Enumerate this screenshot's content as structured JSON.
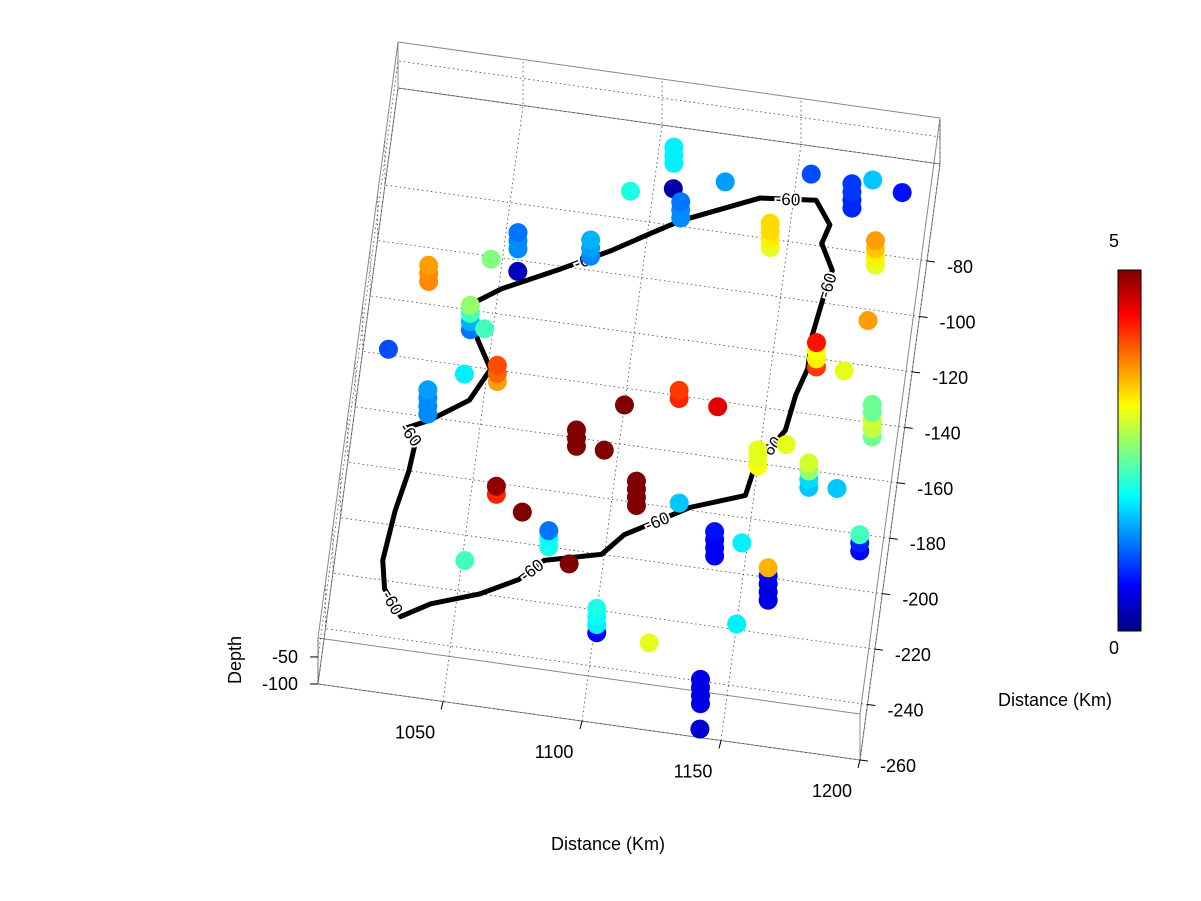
{
  "chart_data": {
    "type": "scatter3",
    "x_label": "Distance (Km)",
    "y_label": "Distance (Km)",
    "z_label": "Depth",
    "xlim": [
      1005,
      1200
    ],
    "xticks": [
      1050,
      1100,
      1150,
      1200
    ],
    "ylim": [
      -260,
      -45
    ],
    "yticks": [
      -260,
      -240,
      -220,
      -200,
      -180,
      -160,
      -140,
      -120,
      -100,
      -80
    ],
    "zlim": [
      -100,
      -15
    ],
    "zticks": [
      -100,
      -50
    ],
    "grid": true,
    "colormap": "jet",
    "clim": [
      0,
      5
    ],
    "cticks": [
      0,
      5
    ],
    "x": [
      1106,
      1106,
      1106,
      1092,
      1107,
      1111,
      1111,
      1111,
      1125,
      1155,
      1171,
      1171,
      1171,
      1171,
      1177,
      1188,
      1055,
      1055,
      1055,
      1056,
      1081,
      1081,
      1081,
      1144,
      1144,
      1144,
      1144,
      1182,
      1182,
      1182,
      1182,
      1025,
      1025,
      1025,
      1046,
      1042,
      1042,
      1042,
      1042,
      1047,
      1014,
      1054,
      1054,
      1054,
      1042,
      1031,
      1031,
      1031,
      1031,
      1166,
      1166,
      1166,
      1166,
      1182,
      1176,
      1189,
      1189,
      1189,
      1189,
      1189,
      1119,
      1119,
      1100,
      1133,
      1085,
      1085,
      1085,
      1095,
      1150,
      1150,
      1150,
      1159,
      1169,
      1169,
      1169,
      1169,
      1179,
      1059,
      1059,
      1109,
      1109,
      1109,
      1109,
      1124,
      1069,
      1080,
      1080,
      1080,
      1139,
      1139,
      1139,
      1139,
      1148,
      1190,
      1190,
      1190,
      1051,
      1088,
      1160,
      1160,
      1160,
      1160,
      1160,
      1101,
      1101,
      1101,
      1101,
      1150,
      1120,
      1141,
      1141,
      1141,
      1141,
      1142
    ],
    "y": [
      -58,
      -58,
      -58,
      -70,
      -67,
      -77,
      -77,
      -77,
      -62,
      -55,
      -65,
      -65,
      -65,
      -65,
      -54,
      -57,
      -96,
      -96,
      -96,
      -104,
      -95,
      -95,
      -95,
      -83,
      -83,
      -83,
      -83,
      -84,
      -84,
      -84,
      -84,
      -112,
      -112,
      -112,
      -101,
      -127,
      -127,
      -127,
      -127,
      -126,
      -138,
      -144,
      -144,
      -144,
      -143,
      -159,
      -159,
      -159,
      -159,
      -123,
      -123,
      -123,
      -123,
      -104,
      -123,
      -145,
      -145,
      -145,
      -145,
      -145,
      -141,
      -141,
      -146,
      -142,
      -163,
      -163,
      -163,
      -163,
      -161,
      -161,
      -161,
      -152,
      -166,
      -166,
      -166,
      -166,
      -165,
      -184,
      -184,
      -181,
      -181,
      -181,
      -181,
      -178,
      -189,
      -200,
      -200,
      -200,
      -195,
      -195,
      -195,
      -195,
      -189,
      -186,
      -186,
      -186,
      -209,
      -205,
      -208,
      -208,
      -208,
      -208,
      -208,
      -228,
      -228,
      -228,
      -228,
      -218,
      -229,
      -248,
      -248,
      -248,
      -248,
      -257
    ],
    "z": [
      -100,
      -85,
      -70,
      -100,
      -100,
      -100,
      -85,
      -70,
      -100,
      -100,
      -100,
      -85,
      -70,
      -55,
      -100,
      -100,
      -100,
      -85,
      -70,
      -100,
      -100,
      -85,
      -70,
      -100,
      -85,
      -70,
      -55,
      -100,
      -85,
      -70,
      -55,
      -100,
      -85,
      -70,
      -100,
      -100,
      -85,
      -70,
      -55,
      -100,
      -100,
      -100,
      -85,
      -70,
      -100,
      -100,
      -85,
      -70,
      -55,
      -100,
      -85,
      -70,
      -55,
      -100,
      -100,
      -100,
      -85,
      -70,
      -55,
      -40,
      -100,
      -85,
      -100,
      -100,
      -100,
      -85,
      -70,
      -100,
      -100,
      -85,
      -70,
      -100,
      -100,
      -85,
      -70,
      -55,
      -100,
      -100,
      -85,
      -100,
      -85,
      -70,
      -55,
      -100,
      -100,
      -100,
      -85,
      -70,
      -100,
      -85,
      -70,
      -55,
      -100,
      -100,
      -85,
      -70,
      -100,
      -100,
      -100,
      -85,
      -70,
      -55,
      -40,
      -100,
      -85,
      -70,
      -55,
      -100,
      -100,
      -100,
      -85,
      -70,
      -55,
      -100
    ],
    "values": [
      1.8,
      1.8,
      1.8,
      2.0,
      0.2,
      1.3,
      1.3,
      1.2,
      1.4,
      1.0,
      0.8,
      0.8,
      0.9,
      0.9,
      1.6,
      0.7,
      1.3,
      1.3,
      1.2,
      0.3,
      1.3,
      1.4,
      1.5,
      3.0,
      3.2,
      3.3,
      3.3,
      3.0,
      3.2,
      3.4,
      3.6,
      3.7,
      3.7,
      3.6,
      2.5,
      1.2,
      1.5,
      2.2,
      2.6,
      2.2,
      1.0,
      3.6,
      3.9,
      4.0,
      1.8,
      1.3,
      1.3,
      1.3,
      1.4,
      4.1,
      3.2,
      3.1,
      4.3,
      3.6,
      3.0,
      2.4,
      2.8,
      2.9,
      2.4,
      2.4,
      4.2,
      4.1,
      5,
      4.5,
      5,
      5,
      5,
      5,
      3.1,
      3.0,
      3.0,
      3.0,
      1.6,
      1.7,
      2.6,
      2.9,
      1.6,
      4.2,
      4.9,
      5,
      5,
      5,
      5,
      1.6,
      5,
      2.0,
      1.9,
      1.2,
      0.6,
      0.6,
      0.6,
      0.7,
      1.8,
      0.6,
      0.8,
      2.2,
      2.2,
      5,
      0.5,
      0.5,
      0.5,
      0.6,
      3.5,
      0.6,
      1.8,
      1.9,
      2.0,
      1.8,
      3.0,
      0.5,
      0.5,
      0.5,
      0.5,
      0.4
    ],
    "contour": {
      "level": -60,
      "color": "#000000",
      "x": [
        1111,
        1138,
        1158,
        1164,
        1162,
        1167,
        1165,
        1163,
        1163,
        1160,
        1158,
        1149,
        1147,
        1128,
        1106,
        1099,
        1079,
        1071,
        1058,
        1041,
        1031,
        1024,
        1022,
        1024,
        1027,
        1028,
        1024,
        1032,
        1045,
        1051,
        1045,
        1041,
        1051,
        1071,
        1088,
        1101,
        1111
      ],
      "y": [
        -78,
        -66,
        -64,
        -72,
        -79,
        -88,
        -99,
        -112,
        -124,
        -134,
        -147,
        -161,
        -172,
        -179,
        -192,
        -200,
        -205,
        -213,
        -220,
        -226,
        -232,
        -223,
        -213,
        -195,
        -180,
        -169,
        -165,
        -161,
        -152,
        -140,
        -130,
        -118,
        -111,
        -101,
        -92,
        -84,
        -78
      ]
    }
  }
}
